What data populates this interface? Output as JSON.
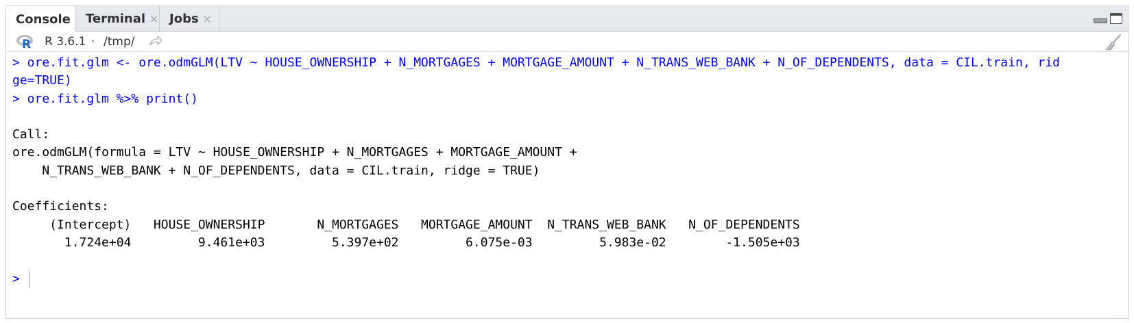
{
  "tabs": [
    {
      "label": "Console",
      "active": true,
      "closable": false
    },
    {
      "label": "Terminal",
      "active": false,
      "closable": true
    },
    {
      "label": "Jobs",
      "active": false,
      "closable": true
    }
  ],
  "tab_close_glyph": "×",
  "infobar": {
    "r_version": "R 3.6.1",
    "separator": "·",
    "working_dir": "/tmp/"
  },
  "console": {
    "commands": [
      "> ore.fit.glm <- ore.odmGLM(LTV ~ HOUSE_OWNERSHIP + N_MORTGAGES + MORTGAGE_AMOUNT + N_TRANS_WEB_BANK + N_OF_DEPENDENTS, data = CIL.train, rid",
      "ge=TRUE)",
      "> ore.fit.glm %>% print()"
    ],
    "call_header": "Call:",
    "call_lines": [
      "ore.odmGLM(formula = LTV ~ HOUSE_OWNERSHIP + N_MORTGAGES + MORTGAGE_AMOUNT +",
      "    N_TRANS_WEB_BANK + N_OF_DEPENDENTS, data = CIL.train, ridge = TRUE)"
    ],
    "coef_header": "Coefficients:",
    "coef_names_line": "     (Intercept)   HOUSE_OWNERSHIP       N_MORTGAGES   MORTGAGE_AMOUNT  N_TRANS_WEB_BANK   N_OF_DEPENDENTS",
    "coef_values_line": "       1.724e+04         9.461e+03         5.397e+02         6.075e-03         5.983e-02        -1.505e+03",
    "coefficients": [
      {
        "name": "(Intercept)",
        "value": "1.724e+04"
      },
      {
        "name": "HOUSE_OWNERSHIP",
        "value": "9.461e+03"
      },
      {
        "name": "N_MORTGAGES",
        "value": "5.397e+02"
      },
      {
        "name": "MORTGAGE_AMOUNT",
        "value": "6.075e-03"
      },
      {
        "name": "N_TRANS_WEB_BANK",
        "value": "5.983e-02"
      },
      {
        "name": "N_OF_DEPENDENTS",
        "value": "-1.505e+03"
      }
    ],
    "prompt": ">"
  },
  "colors": {
    "command": "#0000ff",
    "output": "#000000",
    "tabbar_bg": "#e6e9ed",
    "r_logo_blue": "#2266b8",
    "r_logo_gray": "#b8bcc2"
  }
}
